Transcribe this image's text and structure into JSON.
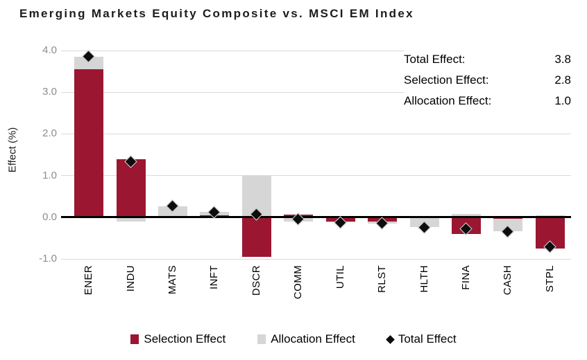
{
  "title": "Emerging Markets Equity Composite vs. MSCI EM Index",
  "summary": {
    "rows": [
      {
        "label": "Total Effect:",
        "value": "3.8"
      },
      {
        "label": "Selection Effect:",
        "value": "2.8"
      },
      {
        "label": "Allocation Effect:",
        "value": "1.0"
      }
    ]
  },
  "colors": {
    "selection": "#9b1731",
    "allocation": "#d6d6d6",
    "marker": "#0d0d0d",
    "gridline": "#d9d9d9",
    "zero_line": "#000000"
  },
  "chart_data": {
    "type": "bar",
    "stacked": true,
    "title": "Emerging Markets Equity Composite vs. MSCI EM Index",
    "ylabel": "Effect (%)",
    "xlabel": "",
    "ylim": [
      -1.0,
      4.0
    ],
    "yticks": [
      4.0,
      3.0,
      2.0,
      1.0,
      0.0,
      -1.0
    ],
    "grid": true,
    "legend_position": "bottom",
    "categories": [
      "ENER",
      "INDU",
      "MATS",
      "INFT",
      "DSCR",
      "COMM",
      "UTIL",
      "RLST",
      "HLTH",
      "FINA",
      "CASH",
      "STPL"
    ],
    "series": [
      {
        "name": "Selection Effect",
        "color": "#9b1731",
        "values": [
          3.55,
          1.4,
          0.03,
          0.05,
          -0.95,
          0.06,
          -0.1,
          -0.11,
          0.0,
          -0.4,
          -0.03,
          -0.75
        ]
      },
      {
        "name": "Allocation Effect",
        "color": "#d6d6d6",
        "values": [
          0.3,
          -0.1,
          0.24,
          0.08,
          1.0,
          -0.11,
          -0.02,
          -0.04,
          -0.24,
          0.08,
          -0.31,
          0.05
        ]
      }
    ],
    "markers": {
      "name": "Total Effect",
      "color": "#0d0d0d",
      "values": [
        3.85,
        1.32,
        0.26,
        0.12,
        0.06,
        -0.05,
        -0.13,
        -0.15,
        -0.25,
        -0.28,
        -0.36,
        -0.72
      ]
    }
  },
  "legend": {
    "items": [
      {
        "label": "Selection Effect",
        "swatch": "square",
        "color": "#9b1731"
      },
      {
        "label": "Allocation Effect",
        "swatch": "square",
        "color": "#d6d6d6"
      },
      {
        "label": "Total Effect",
        "swatch": "diamond",
        "color": "#0d0d0d"
      }
    ]
  }
}
